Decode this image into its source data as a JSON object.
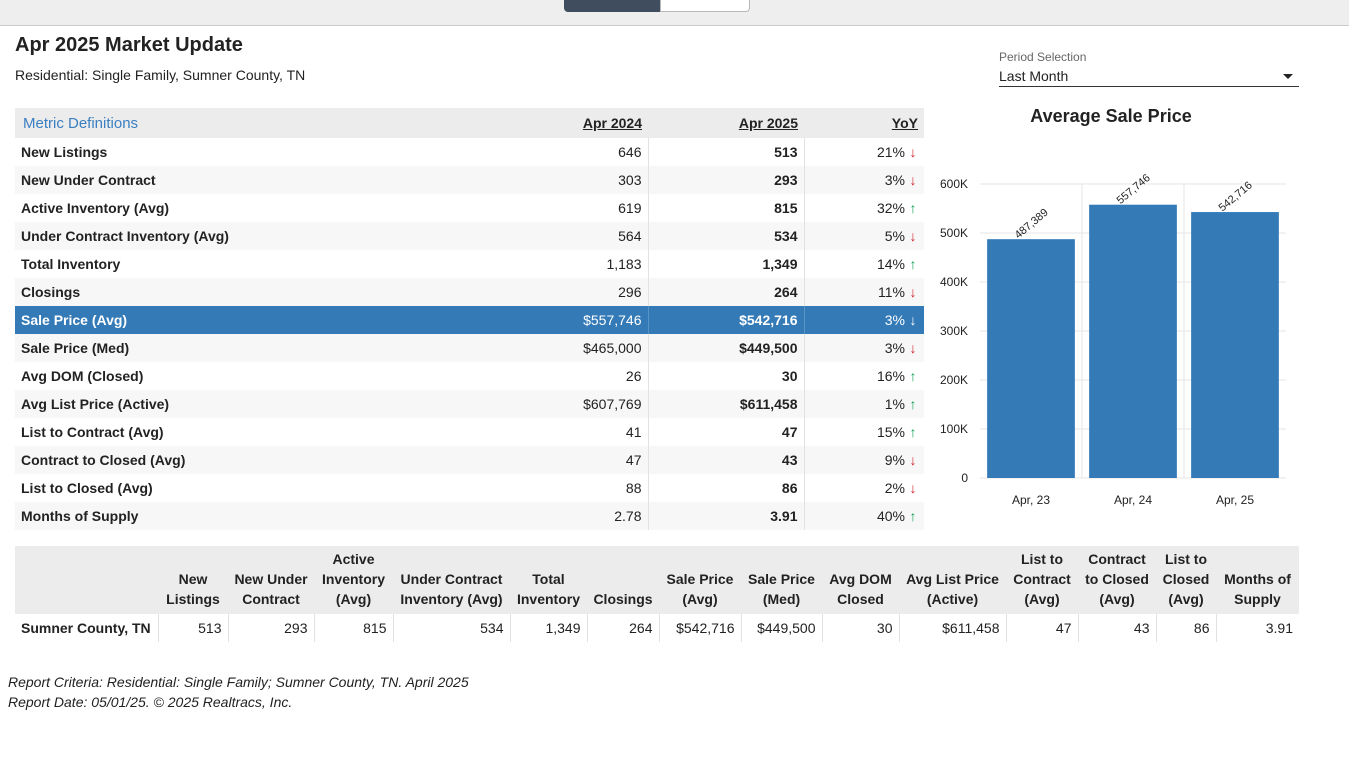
{
  "header": {
    "title": "Apr 2025 Market Update",
    "subtitle": "Residential: Single Family, Sumner County, TN"
  },
  "period": {
    "label": "Period Selection",
    "value": "Last Month"
  },
  "metrics_table": {
    "defs_link": "Metric Definitions",
    "col_prev": "Apr 2024",
    "col_cur": "Apr 2025",
    "col_yoy": "YoY",
    "selected_row": "Sale Price (Avg)",
    "rows": [
      {
        "label": "New Listings",
        "prev": "646",
        "cur": "513",
        "yoy": "21%",
        "dir": "down"
      },
      {
        "label": "New Under Contract",
        "prev": "303",
        "cur": "293",
        "yoy": "3%",
        "dir": "down"
      },
      {
        "label": "Active Inventory (Avg)",
        "prev": "619",
        "cur": "815",
        "yoy": "32%",
        "dir": "up"
      },
      {
        "label": "Under Contract Inventory (Avg)",
        "prev": "564",
        "cur": "534",
        "yoy": "5%",
        "dir": "down"
      },
      {
        "label": "Total Inventory",
        "prev": "1,183",
        "cur": "1,349",
        "yoy": "14%",
        "dir": "up"
      },
      {
        "label": "Closings",
        "prev": "296",
        "cur": "264",
        "yoy": "11%",
        "dir": "down"
      },
      {
        "label": "Sale Price (Avg)",
        "prev": "$557,746",
        "cur": "$542,716",
        "yoy": "3%",
        "dir": "down"
      },
      {
        "label": "Sale Price (Med)",
        "prev": "$465,000",
        "cur": "$449,500",
        "yoy": "3%",
        "dir": "down"
      },
      {
        "label": "Avg DOM (Closed)",
        "prev": "26",
        "cur": "30",
        "yoy": "16%",
        "dir": "up"
      },
      {
        "label": "Avg List Price (Active)",
        "prev": "$607,769",
        "cur": "$611,458",
        "yoy": "1%",
        "dir": "up"
      },
      {
        "label": "List to Contract (Avg)",
        "prev": "41",
        "cur": "47",
        "yoy": "15%",
        "dir": "up"
      },
      {
        "label": "Contract to Closed (Avg)",
        "prev": "47",
        "cur": "43",
        "yoy": "9%",
        "dir": "down"
      },
      {
        "label": "List to Closed (Avg)",
        "prev": "88",
        "cur": "86",
        "yoy": "2%",
        "dir": "down"
      },
      {
        "label": "Months of Supply",
        "prev": "2.78",
        "cur": "3.91",
        "yoy": "40%",
        "dir": "up"
      }
    ]
  },
  "chart_data": {
    "type": "bar",
    "title": "Average Sale Price",
    "categories": [
      "Apr, 23",
      "Apr, 24",
      "Apr, 25"
    ],
    "values": [
      487389,
      557746,
      542716
    ],
    "value_labels": [
      "487,389",
      "557,746",
      "542,716"
    ],
    "yticks": [
      0,
      100000,
      200000,
      300000,
      400000,
      500000,
      600000
    ],
    "ytick_labels": [
      "0",
      "100K",
      "200K",
      "300K",
      "400K",
      "500K",
      "600K"
    ],
    "ylim": [
      0,
      600000
    ],
    "bar_color": "#337ab7",
    "grid": true
  },
  "summary_table": {
    "headers": [
      "",
      "New Listings",
      "New Under Contract",
      "Active Inventory (Avg)",
      "Under Contract Inventory (Avg)",
      "Total Inventory",
      "Closings",
      "Sale Price (Avg)",
      "Sale Price (Med)",
      "Avg DOM Closed",
      "Avg List Price (Active)",
      "List to Contract (Avg)",
      "Contract to Closed (Avg)",
      "List to Closed (Avg)",
      "Months of Supply"
    ],
    "row": [
      "Sumner County, TN",
      "513",
      "293",
      "815",
      "534",
      "1,349",
      "264",
      "$542,716",
      "$449,500",
      "30",
      "$611,458",
      "47",
      "43",
      "86",
      "3.91"
    ]
  },
  "footer": {
    "line1": "Report Criteria: Residential: Single Family; Sumner County, TN. April 2025",
    "line2": "Report Date: 05/01/25. © 2025 Realtracs, Inc."
  },
  "colors": {
    "accent": "#337ab7",
    "up": "#18a35a",
    "down": "#d0232b",
    "link": "#3a7fc2"
  }
}
